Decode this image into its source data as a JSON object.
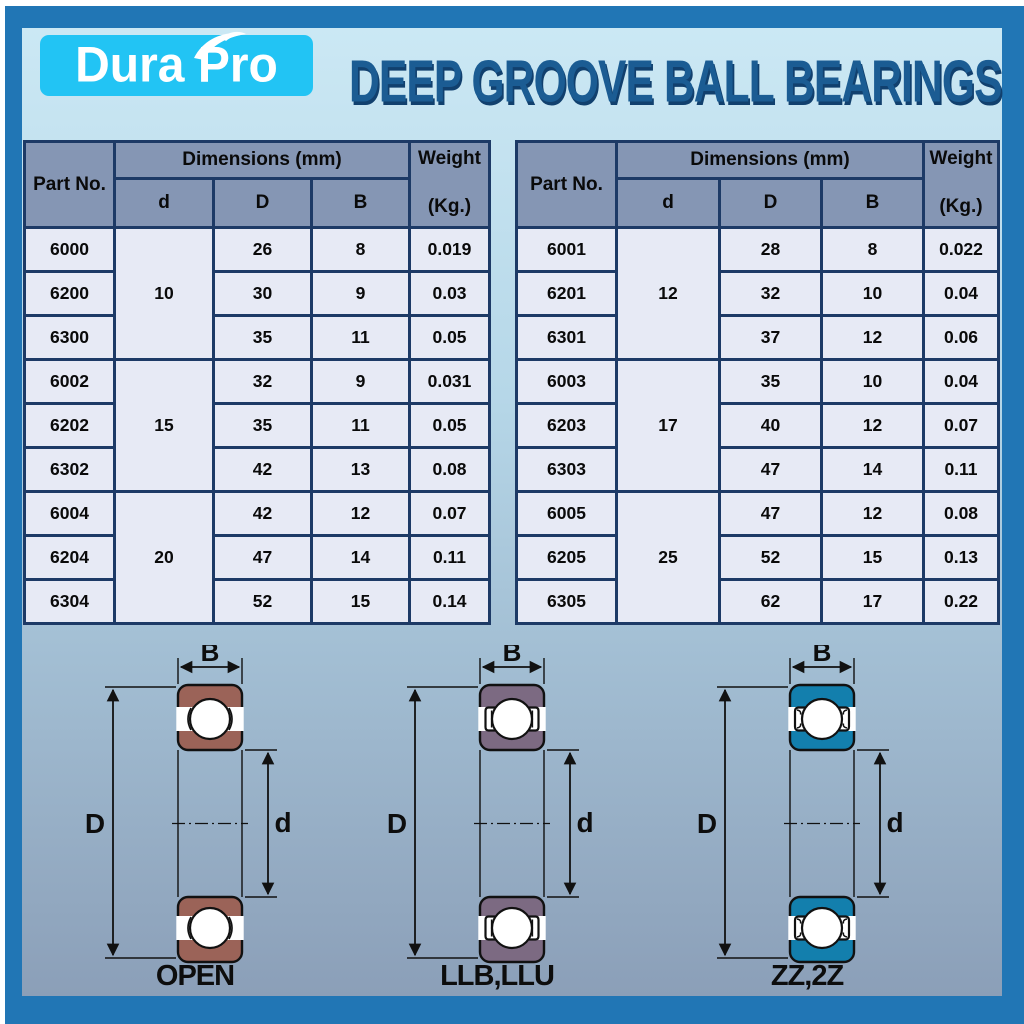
{
  "page": {
    "brand": "Dura Pro",
    "title": "DEEP GROOVE BALL BEARINGS",
    "colors": {
      "frame": "#2176b5",
      "logo_bg": "#22c4f4",
      "title_text": "#1b5c93",
      "table_header_bg": "#8596b4",
      "table_cell_bg": "#e7eaf5",
      "table_border": "#1d3a66",
      "bg_top": "#cbe8f4",
      "bg_bottom": "#8b9fb8"
    }
  },
  "table_header": {
    "part": "Part No.",
    "dims": "Dimensions (mm)",
    "d": "d",
    "D": "D",
    "B": "B",
    "weight": "Weight",
    "weight_unit": "(Kg.)"
  },
  "tables": [
    {
      "groups": [
        {
          "d": "10",
          "rows": [
            {
              "part": "6000",
              "D": "26",
              "B": "8",
              "w": "0.019",
              "sep": true
            },
            {
              "part": "6200",
              "D": "30",
              "B": "9",
              "w": "0.03",
              "sep": true
            },
            {
              "part": "6300",
              "D": "35",
              "B": "11",
              "w": "0.05"
            }
          ]
        },
        {
          "d": "15",
          "rows": [
            {
              "part": "6002",
              "D": "32",
              "B": "9",
              "w": "0.031"
            },
            {
              "part": "6202",
              "D": "35",
              "B": "11",
              "w": "0.05"
            },
            {
              "part": "6302",
              "D": "42",
              "B": "13",
              "w": "0.08"
            }
          ]
        },
        {
          "d": "20",
          "rows": [
            {
              "part": "6004",
              "D": "42",
              "B": "12",
              "w": "0.07"
            },
            {
              "part": "6204",
              "D": "47",
              "B": "14",
              "w": "0.11"
            },
            {
              "part": "6304",
              "D": "52",
              "B": "15",
              "w": "0.14"
            }
          ]
        }
      ]
    },
    {
      "groups": [
        {
          "d": "12",
          "rows": [
            {
              "part": "6001",
              "D": "28",
              "B": "8",
              "w": "0.022"
            },
            {
              "part": "6201",
              "D": "32",
              "B": "10",
              "w": "0.04"
            },
            {
              "part": "6301",
              "D": "37",
              "B": "12",
              "w": "0.06"
            }
          ]
        },
        {
          "d": "17",
          "rows": [
            {
              "part": "6003",
              "D": "35",
              "B": "10",
              "w": "0.04"
            },
            {
              "part": "6203",
              "D": "40",
              "B": "12",
              "w": "0.07"
            },
            {
              "part": "6303",
              "D": "47",
              "B": "14",
              "w": "0.11"
            }
          ]
        },
        {
          "d": "25",
          "rows": [
            {
              "part": "6005",
              "D": "47",
              "B": "12",
              "w": "0.08"
            },
            {
              "part": "6205",
              "D": "52",
              "B": "15",
              "w": "0.13"
            },
            {
              "part": "6305",
              "D": "62",
              "B": "17",
              "w": "0.22"
            }
          ]
        }
      ]
    }
  ],
  "diagrams": {
    "dims": {
      "width": "B",
      "outer": "D",
      "bore": "d"
    },
    "items": [
      {
        "label": "OPEN",
        "color": "#9b6358",
        "type": "open"
      },
      {
        "label": "LLB,LLU",
        "color": "#7c6a82",
        "type": "sealed"
      },
      {
        "label": "ZZ,2Z",
        "color": "#137fad",
        "type": "shielded"
      }
    ]
  }
}
